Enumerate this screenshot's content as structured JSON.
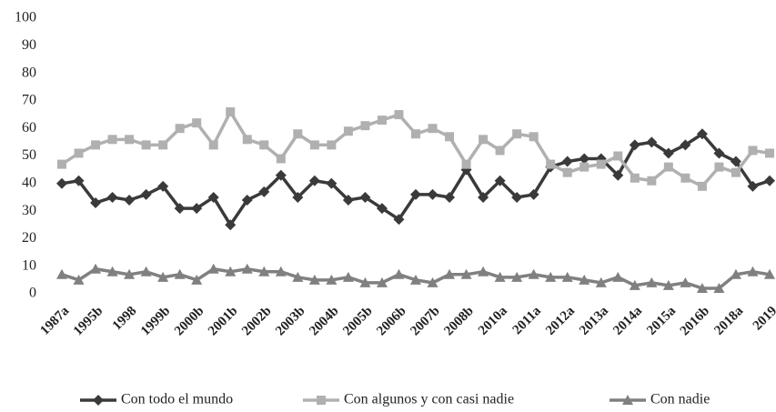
{
  "chart_data": {
    "type": "line",
    "categories": [
      "1987a",
      null,
      "1995b",
      null,
      "1998",
      null,
      "1999b",
      null,
      "2000b",
      null,
      "2001b",
      null,
      "2002b",
      null,
      "2003b",
      null,
      "2004b",
      null,
      "2005b",
      null,
      "2006b",
      null,
      "2007b",
      null,
      "2008b",
      null,
      "2010a",
      null,
      "2011a",
      null,
      "2012a",
      null,
      "2013a",
      null,
      "2014a",
      null,
      "2015a",
      null,
      "2016b",
      null,
      "2018a",
      null,
      "2019"
    ],
    "series": [
      {
        "name": "Con todo el mundo",
        "color": "#3a3a3a",
        "marker": "diamond",
        "values": [
          40,
          41,
          33,
          35,
          34,
          36,
          39,
          31,
          31,
          35,
          25,
          34,
          37,
          43,
          35,
          41,
          40,
          34,
          35,
          31,
          27,
          36,
          36,
          35,
          45,
          35,
          41,
          35,
          36,
          46,
          48,
          49,
          49,
          43,
          54,
          55,
          51,
          54,
          58,
          51,
          48,
          39,
          41
        ]
      },
      {
        "name": "Con algunos y con casi nadie",
        "color": "#b0b0b0",
        "marker": "square",
        "values": [
          47,
          51,
          54,
          56,
          56,
          54,
          54,
          60,
          62,
          54,
          66,
          56,
          54,
          49,
          58,
          54,
          54,
          59,
          61,
          63,
          65,
          58,
          60,
          57,
          47,
          56,
          52,
          58,
          57,
          47,
          44,
          46,
          47,
          50,
          42,
          41,
          46,
          42,
          39,
          46,
          44,
          52,
          51
        ]
      },
      {
        "name": "Con nadie",
        "color": "#808080",
        "marker": "triangle",
        "values": [
          7,
          5,
          9,
          8,
          7,
          8,
          6,
          7,
          5,
          9,
          8,
          9,
          8,
          8,
          6,
          5,
          5,
          6,
          4,
          4,
          7,
          5,
          4,
          7,
          7,
          8,
          6,
          6,
          7,
          6,
          6,
          5,
          4,
          6,
          3,
          4,
          3,
          4,
          2,
          2,
          7,
          8,
          7
        ]
      }
    ],
    "ylim": [
      0,
      100
    ],
    "yticks": [
      0,
      10,
      20,
      30,
      40,
      50,
      60,
      70,
      80,
      90,
      100
    ],
    "grid": false,
    "legend": "bottom"
  }
}
